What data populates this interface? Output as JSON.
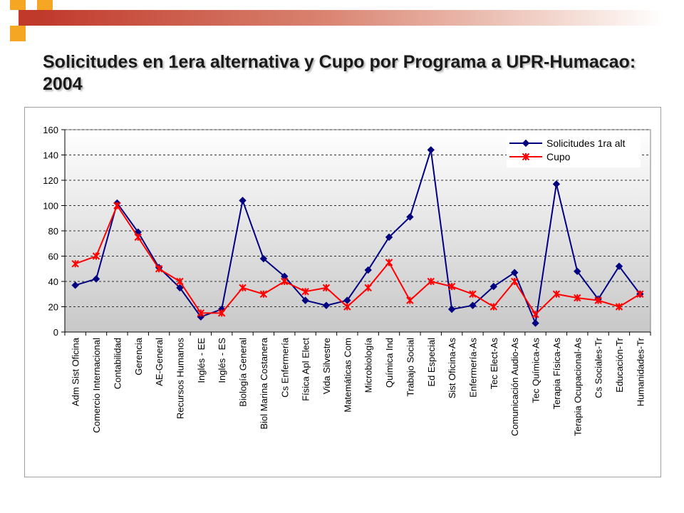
{
  "slide": {
    "title": "Solicitudes en 1era alternativa y Cupo por Programa a UPR-Humacao: 2004"
  },
  "colors": {
    "deco_orange": "#f5a623",
    "deco_red": "#c0392b",
    "series1": "#000080",
    "series2": "#ff0000",
    "plot_bg_top": "#ffffff",
    "plot_bg_bottom": "#c8c8c8"
  },
  "chart_data": {
    "type": "line",
    "title": "",
    "xlabel": "",
    "ylabel": "",
    "ylim": [
      0,
      160
    ],
    "yticks": [
      0,
      20,
      40,
      60,
      80,
      100,
      120,
      140,
      160
    ],
    "grid": "horizontal dashed",
    "legend_position": "top-right",
    "categories": [
      "Adm Sist Oficina",
      "Comercio Internacional",
      "Contabilidad",
      "Gerencia",
      "AE-General",
      "Recursos Humanos",
      "Inglés - EE",
      "Inglés - ES",
      "Biología General",
      "Biol Marina Costanera",
      "Cs Enfermería",
      "Física Apl Elect",
      "Vida Silvestre",
      "Matemáticas Com",
      "Microbiología",
      "Química Ind",
      "Trabajo Social",
      "Ed Especial",
      "Sist Oficina-As",
      "Enfermería-As",
      "Tec Elect-As",
      "Comunicación Audio-As",
      "Tec Química-As",
      "Terapia Física-As",
      "Terapia Ocupacional-As",
      "Cs Sociales-Tr",
      "Educación-Tr",
      "Humanidades-Tr"
    ],
    "series": [
      {
        "name": "Solicitudes 1ra alt",
        "marker": "diamond",
        "values": [
          37,
          42,
          102,
          79,
          51,
          35,
          12,
          18,
          104,
          58,
          44,
          25,
          21,
          25,
          49,
          75,
          91,
          144,
          18,
          21,
          36,
          47,
          7,
          117,
          48,
          26,
          52,
          30
        ]
      },
      {
        "name": "Cupo",
        "marker": "asterisk",
        "values": [
          54,
          60,
          100,
          75,
          50,
          40,
          15,
          15,
          35,
          30,
          40,
          32,
          35,
          20,
          35,
          55,
          25,
          40,
          36,
          30,
          20,
          40,
          14,
          30,
          27,
          25,
          20,
          30
        ]
      }
    ]
  }
}
